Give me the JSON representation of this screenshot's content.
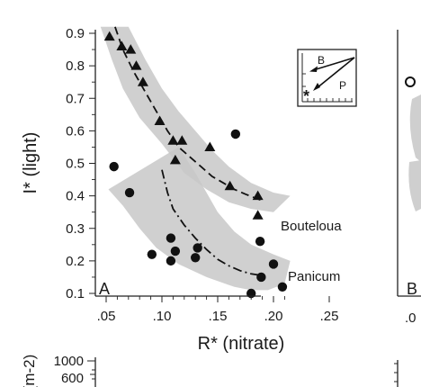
{
  "chart_data": [
    {
      "type": "scatter",
      "panel_label": "A",
      "xlabel": "R* (nitrate)",
      "ylabel": "I* (light)",
      "xlim": [
        0.05,
        0.25
      ],
      "ylim": [
        0.1,
        0.9
      ],
      "x_ticks": [
        ".05",
        ".10",
        ".15",
        ".20",
        ".25"
      ],
      "x_tick_values": [
        0.05,
        0.1,
        0.15,
        0.2,
        0.25
      ],
      "y_ticks": [
        "0.1",
        "0.2",
        "0.3",
        "0.4",
        "0.5",
        "0.6",
        "0.7",
        "0.8",
        "0.9"
      ],
      "y_tick_values": [
        0.1,
        0.2,
        0.3,
        0.4,
        0.5,
        0.6,
        0.7,
        0.8,
        0.9
      ],
      "grid": false,
      "series": [
        {
          "name": "Bouteloua",
          "marker": "triangle",
          "fit_style": "dashed",
          "points": [
            [
              0.053,
              0.89
            ],
            [
              0.064,
              0.86
            ],
            [
              0.072,
              0.85
            ],
            [
              0.077,
              0.8
            ],
            [
              0.083,
              0.75
            ],
            [
              0.098,
              0.63
            ],
            [
              0.11,
              0.57
            ],
            [
              0.112,
              0.51
            ],
            [
              0.118,
              0.57
            ],
            [
              0.143,
              0.55
            ],
            [
              0.161,
              0.43
            ],
            [
              0.186,
              0.4
            ],
            [
              0.186,
              0.34
            ]
          ],
          "fit": [
            [
              0.058,
              0.92
            ],
            [
              0.065,
              0.85
            ],
            [
              0.075,
              0.78
            ],
            [
              0.085,
              0.72
            ],
            [
              0.095,
              0.66
            ],
            [
              0.105,
              0.6
            ],
            [
              0.115,
              0.55
            ],
            [
              0.125,
              0.52
            ],
            [
              0.135,
              0.49
            ],
            [
              0.145,
              0.46
            ],
            [
              0.155,
              0.44
            ],
            [
              0.165,
              0.42
            ],
            [
              0.175,
              0.405
            ],
            [
              0.19,
              0.385
            ]
          ],
          "band_upper": [
            [
              0.07,
              0.92
            ],
            [
              0.085,
              0.82
            ],
            [
              0.1,
              0.73
            ],
            [
              0.115,
              0.66
            ],
            [
              0.13,
              0.6
            ],
            [
              0.145,
              0.54
            ],
            [
              0.16,
              0.49
            ],
            [
              0.18,
              0.44
            ],
            [
              0.2,
              0.41
            ],
            [
              0.215,
              0.4
            ]
          ],
          "band_lower": [
            [
              0.045,
              0.92
            ],
            [
              0.055,
              0.82
            ],
            [
              0.065,
              0.73
            ],
            [
              0.08,
              0.64
            ],
            [
              0.1,
              0.56
            ],
            [
              0.12,
              0.47
            ],
            [
              0.14,
              0.42
            ],
            [
              0.16,
              0.38
            ],
            [
              0.18,
              0.36
            ],
            [
              0.2,
              0.35
            ]
          ]
        },
        {
          "name": "Panicum",
          "marker": "circle",
          "fit_style": "dash-dot",
          "points": [
            [
              0.057,
              0.49
            ],
            [
              0.071,
              0.41
            ],
            [
              0.091,
              0.22
            ],
            [
              0.108,
              0.27
            ],
            [
              0.108,
              0.2
            ],
            [
              0.112,
              0.23
            ],
            [
              0.13,
              0.21
            ],
            [
              0.132,
              0.24
            ],
            [
              0.166,
              0.59
            ],
            [
              0.18,
              0.1
            ],
            [
              0.188,
              0.26
            ],
            [
              0.189,
              0.15
            ],
            [
              0.2,
              0.19
            ],
            [
              0.208,
              0.12
            ]
          ],
          "fit": [
            [
              0.1,
              0.48
            ],
            [
              0.105,
              0.41
            ],
            [
              0.11,
              0.36
            ],
            [
              0.12,
              0.31
            ],
            [
              0.13,
              0.27
            ],
            [
              0.14,
              0.235
            ],
            [
              0.15,
              0.205
            ],
            [
              0.16,
              0.185
            ],
            [
              0.17,
              0.17
            ],
            [
              0.18,
              0.16
            ],
            [
              0.19,
              0.155
            ]
          ],
          "band_upper": [
            [
              0.115,
              0.55
            ],
            [
              0.13,
              0.47
            ],
            [
              0.14,
              0.41
            ],
            [
              0.15,
              0.35
            ],
            [
              0.165,
              0.29
            ],
            [
              0.18,
              0.25
            ],
            [
              0.2,
              0.22
            ],
            [
              0.215,
              0.2
            ]
          ],
          "band_lower": [
            [
              0.052,
              0.42
            ],
            [
              0.065,
              0.37
            ],
            [
              0.08,
              0.3
            ],
            [
              0.095,
              0.24
            ],
            [
              0.115,
              0.19
            ],
            [
              0.14,
              0.15
            ],
            [
              0.165,
              0.12
            ],
            [
              0.18,
              0.11
            ],
            [
              0.195,
              0.11
            ],
            [
              0.21,
              0.13
            ]
          ]
        }
      ],
      "inset": {
        "labels": [
          "B",
          "P",
          "*"
        ],
        "arrow_color": "#1a1a1a"
      },
      "colors": {
        "band": "#c8c8c8",
        "points": "#111111",
        "axis": "#222222"
      }
    },
    {
      "type": "scatter",
      "panel_label": "B",
      "x_ticks": [
        ".0"
      ],
      "clipped": true
    },
    {
      "type": "scatter",
      "clipped": true,
      "ylabel": "(m-2)",
      "y_ticks": [
        "1000",
        "600"
      ]
    }
  ]
}
